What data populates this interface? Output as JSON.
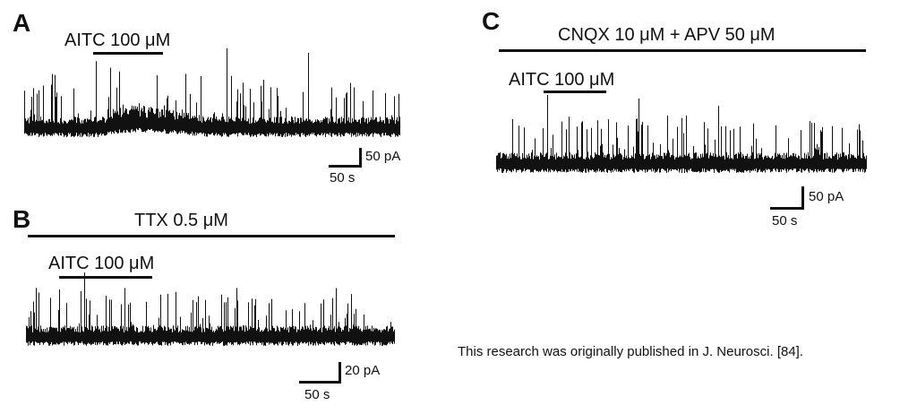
{
  "panels": {
    "A": {
      "letter": "A",
      "drug": "AITC 100 μM",
      "scale_y": "50 pA",
      "scale_x": "50 s"
    },
    "B": {
      "letter": "B",
      "condition": "TTX 0.5 μM",
      "drug": "AITC 100 μM",
      "scale_y": "20 pA",
      "scale_x": "50 s"
    },
    "C": {
      "letter": "C",
      "condition": "CNQX 10 μM + APV 50 μM",
      "drug": "AITC 100 μM",
      "scale_y": "50 pA",
      "scale_x": "50 s"
    }
  },
  "caption": "This research was originally published in J. Neurosci. [84].",
  "colors": {
    "trace": "#111111"
  }
}
